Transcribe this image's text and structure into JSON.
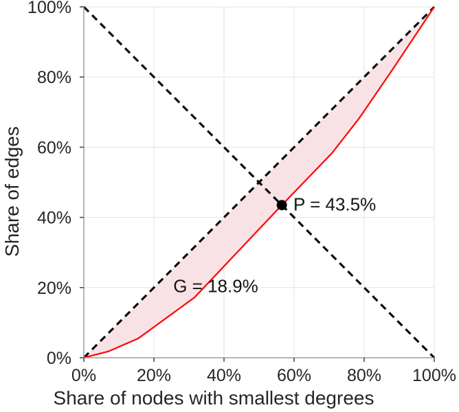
{
  "figure": {
    "background": "#ffffff"
  },
  "chart_data": {
    "type": "line",
    "title": "",
    "xlabel": "Share of nodes with smallest degrees",
    "ylabel": "Share of edges",
    "xlim": [
      0,
      100
    ],
    "ylim": [
      0,
      100
    ],
    "grid": true,
    "legend": "none",
    "xtick_values": [
      0,
      20,
      40,
      60,
      80,
      100
    ],
    "xtick_labels": [
      "0%",
      "20%",
      "40%",
      "60%",
      "80%",
      "100%"
    ],
    "ytick_values": [
      0,
      20,
      40,
      60,
      80,
      100
    ],
    "ytick_labels": [
      "0%",
      "20%",
      "40%",
      "60%",
      "80%",
      "100%"
    ],
    "series": [
      {
        "name": "equality-diagonal",
        "style": "dashed",
        "color": "#0d0d0d",
        "width": 3.2,
        "points": [
          [
            0,
            0
          ],
          [
            100,
            100
          ]
        ]
      },
      {
        "name": "anti-diagonal",
        "style": "dashed",
        "color": "#0d0d0d",
        "width": 3.2,
        "points": [
          [
            0,
            100
          ],
          [
            100,
            0
          ]
        ]
      },
      {
        "name": "lorenz-curve",
        "style": "solid",
        "color": "#fb0d0d",
        "width": 2.3,
        "points": [
          [
            0,
            0
          ],
          [
            7,
            1.8
          ],
          [
            15.5,
            5.5
          ],
          [
            31.6,
            17.2
          ],
          [
            56.5,
            43.5
          ],
          [
            70.8,
            58.3
          ],
          [
            78.6,
            68.3
          ],
          [
            88,
            82
          ],
          [
            100,
            100
          ]
        ]
      }
    ],
    "shaded_region": {
      "between": [
        "equality-diagonal",
        "lorenz-curve"
      ],
      "fill": "#f9e2e5"
    },
    "marker": {
      "x": 56.5,
      "y": 43.5,
      "color": "#000000",
      "radius_px": 7.5
    },
    "annotations": [
      {
        "id": "p-label",
        "text": "P = 43.5%",
        "attach_x": 56.5,
        "attach_y": 43.5
      },
      {
        "id": "g-label",
        "text": "G = 18.9%",
        "attach_x": 37.6,
        "attach_y": 20.3
      }
    ],
    "readout": {
      "gini_pct": 18.9,
      "p_pct": 43.5
    }
  },
  "style": {
    "grid_color": "#e3e3e3",
    "spine_color": "#9e9e9e",
    "tick_color": "#4d4d4d",
    "text_color": "#262626",
    "dash_pattern": "10 7"
  }
}
